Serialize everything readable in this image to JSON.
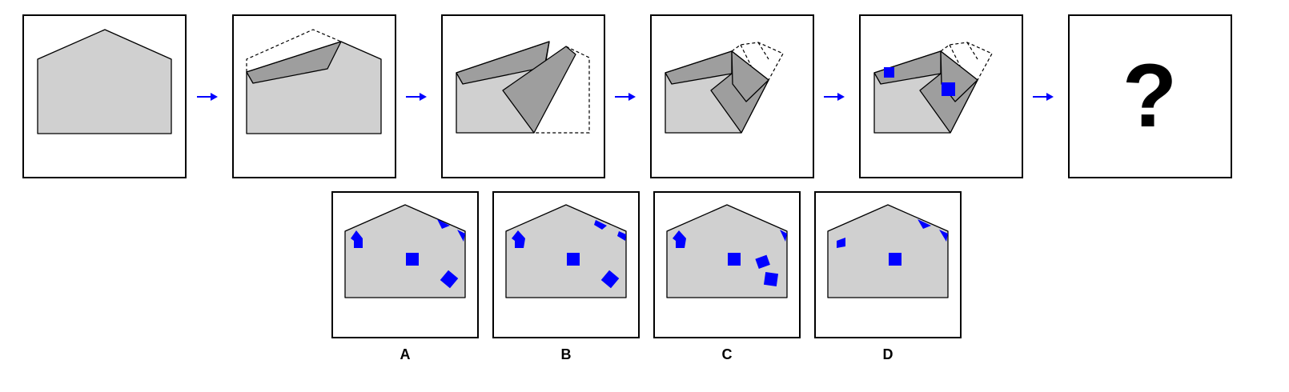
{
  "colors": {
    "paper": "#d0d0d0",
    "flap": "#9e9e9e",
    "hole": "#0000ff",
    "arrow": "#0000ff",
    "outline": "#000000"
  },
  "sequence": {
    "question_mark": "?"
  },
  "options": [
    {
      "label": "A"
    },
    {
      "label": "B"
    },
    {
      "label": "C"
    },
    {
      "label": "D"
    }
  ]
}
